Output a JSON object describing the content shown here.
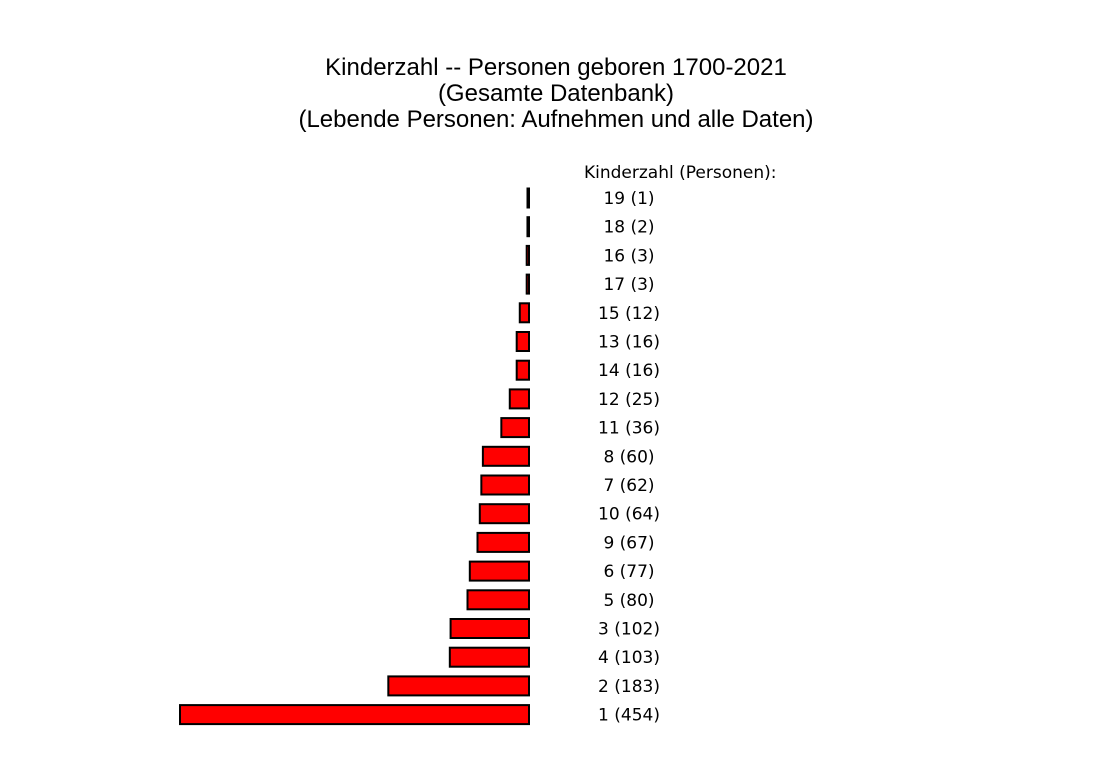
{
  "chart_data": {
    "type": "bar",
    "orientation": "horizontal",
    "title": [
      "Kinderzahl -- Personen geboren 1700-2021",
      "(Gesamte Datenbank)",
      "(Lebende Personen: Aufnehmen und alle Daten)"
    ],
    "legend_title": "Kinderzahl (Personen):",
    "bar_color": "#ff0000",
    "bar_stroke": "#000000",
    "xlim": [
      0,
      454
    ],
    "categories": [
      "19",
      "18",
      "16",
      "17",
      "15",
      "13",
      "14",
      "12",
      "11",
      "8",
      "7",
      "10",
      "9",
      "6",
      "5",
      "3",
      "4",
      "2",
      "1"
    ],
    "values": [
      1,
      2,
      3,
      3,
      12,
      16,
      16,
      25,
      36,
      60,
      62,
      64,
      67,
      77,
      80,
      102,
      103,
      183,
      454
    ],
    "labels": [
      "19 (1)",
      "18 (2)",
      "16 (3)",
      "17 (3)",
      "15 (12)",
      "13 (16)",
      "14 (16)",
      "12 (25)",
      "11 (36)",
      "8 (60)",
      "7 (62)",
      "10 (64)",
      "9 (67)",
      "6 (77)",
      "5 (80)",
      "3 (102)",
      "4 (103)",
      "2 (183)",
      "1 (454)"
    ]
  }
}
